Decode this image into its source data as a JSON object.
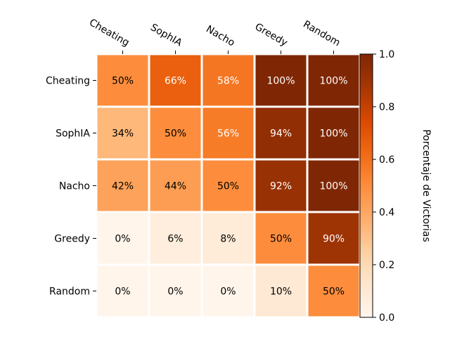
{
  "chart_data": {
    "type": "heatmap",
    "title": "",
    "rows": [
      "Cheating",
      "SophIA",
      "Nacho",
      "Greedy",
      "Random"
    ],
    "columns": [
      "Cheating",
      "SophIA",
      "Nacho",
      "Greedy",
      "Random"
    ],
    "values": [
      [
        0.5,
        0.66,
        0.58,
        1.0,
        1.0
      ],
      [
        0.34,
        0.5,
        0.56,
        0.94,
        1.0
      ],
      [
        0.42,
        0.44,
        0.5,
        0.92,
        1.0
      ],
      [
        0.0,
        0.06,
        0.08,
        0.5,
        0.9
      ],
      [
        0.0,
        0.0,
        0.0,
        0.1,
        0.5
      ]
    ],
    "labels": [
      [
        "50%",
        "66%",
        "58%",
        "100%",
        "100%"
      ],
      [
        "34%",
        "50%",
        "56%",
        "94%",
        "100%"
      ],
      [
        "42%",
        "44%",
        "50%",
        "92%",
        "100%"
      ],
      [
        "0%",
        "6%",
        "8%",
        "50%",
        "90%"
      ],
      [
        "0%",
        "0%",
        "0%",
        "10%",
        "50%"
      ]
    ],
    "colormap": "Oranges",
    "vmin": 0.0,
    "vmax": 1.0,
    "colorbar": {
      "label": "Porcentaje de Victorias",
      "ticks": [
        0.0,
        0.2,
        0.4,
        0.6,
        0.8,
        1.0
      ],
      "tick_labels": [
        "0.0",
        "0.2",
        "0.4",
        "0.6",
        "0.8",
        "1.0"
      ]
    },
    "x_tick_position": "top",
    "cell_separator_color": "#ffffff"
  }
}
